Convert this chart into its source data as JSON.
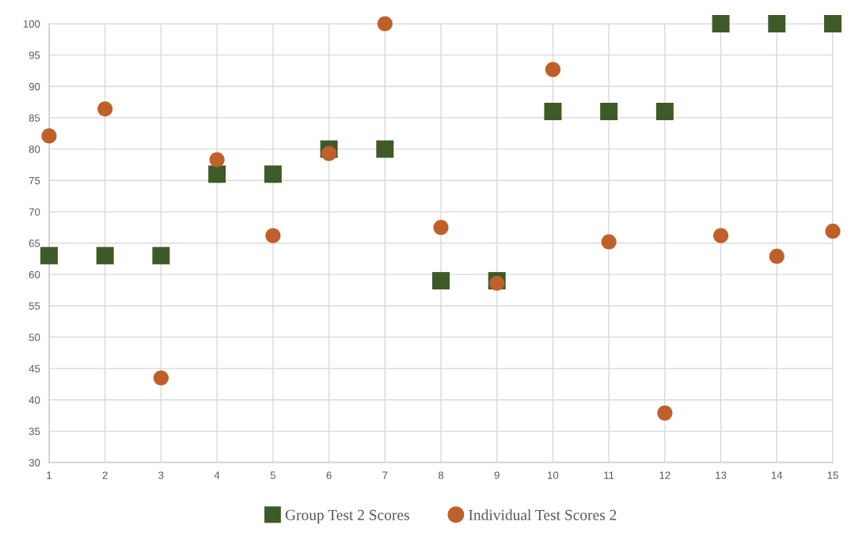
{
  "chart_data": {
    "type": "scatter",
    "x": [
      1,
      2,
      3,
      4,
      5,
      6,
      7,
      8,
      9,
      10,
      11,
      12,
      13,
      14,
      15
    ],
    "series": [
      {
        "name": "Group Test 2 Scores",
        "color": "#3d5a27",
        "marker": "square",
        "values": [
          63,
          63,
          63,
          76,
          76,
          80,
          80,
          59,
          59,
          86,
          86,
          86,
          100,
          100,
          100
        ]
      },
      {
        "name": "Individual Test Scores 2",
        "color": "#bf602a",
        "marker": "circle",
        "values": [
          82.1,
          86.4,
          43.5,
          78.3,
          66.2,
          79.3,
          100,
          67.5,
          58.6,
          92.7,
          65.2,
          37.9,
          66.2,
          62.9,
          66.9
        ]
      }
    ],
    "xlim": [
      1,
      15
    ],
    "xticks": [
      1,
      2,
      3,
      4,
      5,
      6,
      7,
      8,
      9,
      10,
      11,
      12,
      13,
      14,
      15
    ],
    "ylim": [
      30,
      100
    ],
    "yticks": [
      30,
      35,
      40,
      45,
      50,
      55,
      60,
      65,
      70,
      75,
      80,
      85,
      90,
      95,
      100
    ],
    "grid": true,
    "legend": "bottom"
  }
}
